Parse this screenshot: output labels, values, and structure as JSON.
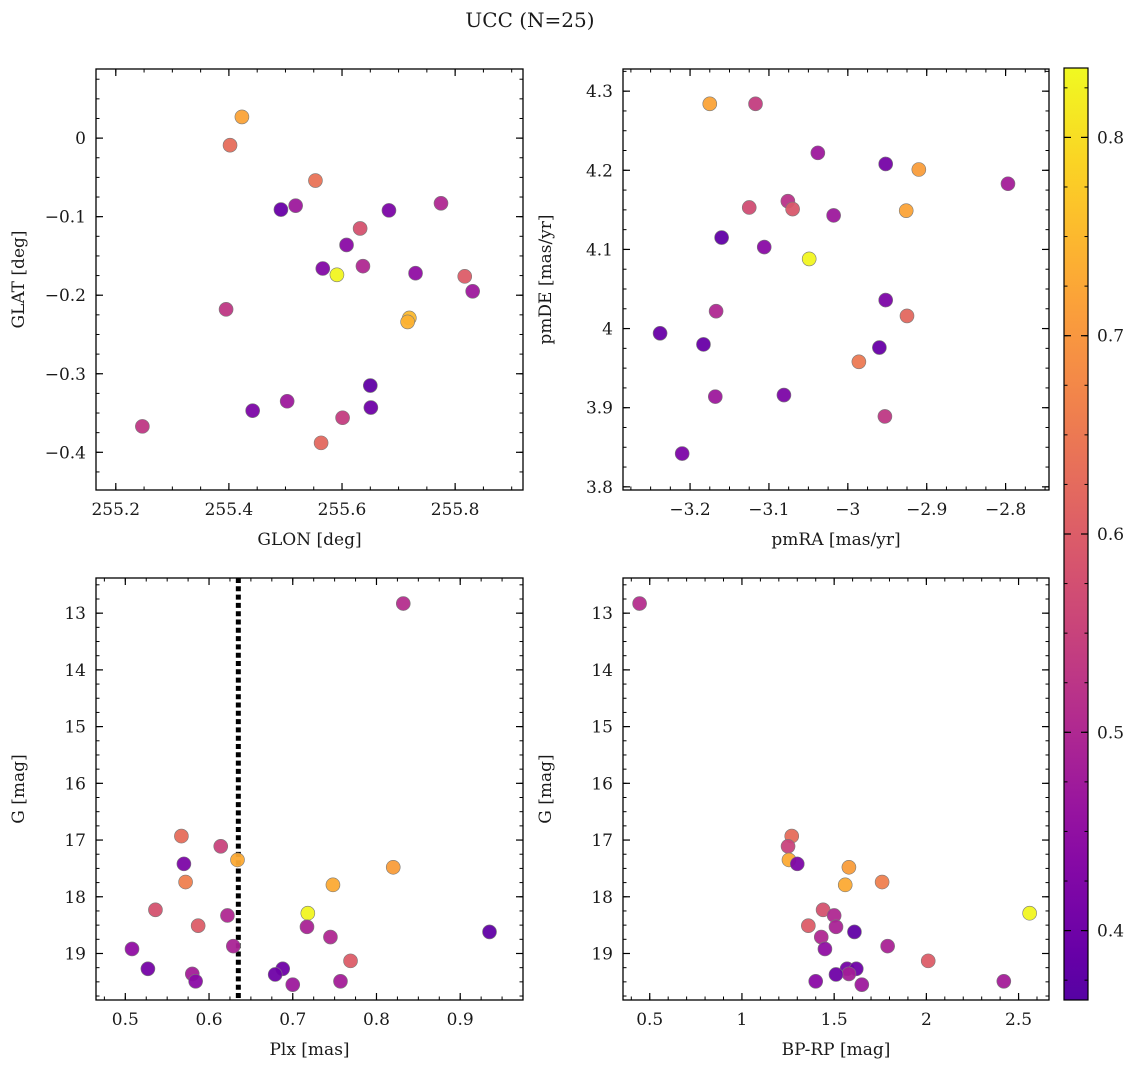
{
  "chart_data": {
    "title": "UCC (N=25)",
    "type": "scatter",
    "colorbar": {
      "colormap": "plasma",
      "range": [
        0.365,
        0.835
      ],
      "ticks": [
        0.4,
        0.5,
        0.6,
        0.7,
        0.8
      ]
    },
    "panels": [
      {
        "id": "glon-glat",
        "xlabel": "GLON [deg]",
        "ylabel": "GLAT [deg]",
        "xlim": [
          255.165,
          255.92
        ],
        "ylim": [
          -0.448,
          0.088
        ],
        "yinvert": false,
        "xticks": [
          255.2,
          255.4,
          255.6,
          255.8
        ],
        "yticks": [
          0.0,
          -0.1,
          -0.2,
          -0.3,
          -0.4
        ],
        "xminor": 0.05,
        "yminor": 0.025,
        "points": [
          {
            "x": 255.423,
            "y": 0.027,
            "c": 0.72
          },
          {
            "x": 255.402,
            "y": -0.009,
            "c": 0.63
          },
          {
            "x": 255.553,
            "y": -0.054,
            "c": 0.64
          },
          {
            "x": 255.518,
            "y": -0.086,
            "c": 0.47
          },
          {
            "x": 255.492,
            "y": -0.091,
            "c": 0.39
          },
          {
            "x": 255.683,
            "y": -0.092,
            "c": 0.42
          },
          {
            "x": 255.775,
            "y": -0.083,
            "c": 0.5
          },
          {
            "x": 255.632,
            "y": -0.115,
            "c": 0.58
          },
          {
            "x": 255.608,
            "y": -0.136,
            "c": 0.44
          },
          {
            "x": 255.566,
            "y": -0.166,
            "c": 0.43
          },
          {
            "x": 255.637,
            "y": -0.163,
            "c": 0.5
          },
          {
            "x": 255.591,
            "y": -0.174,
            "c": 0.83
          },
          {
            "x": 255.73,
            "y": -0.172,
            "c": 0.45
          },
          {
            "x": 255.817,
            "y": -0.176,
            "c": 0.6
          },
          {
            "x": 255.831,
            "y": -0.195,
            "c": 0.47
          },
          {
            "x": 255.395,
            "y": -0.218,
            "c": 0.53
          },
          {
            "x": 255.719,
            "y": -0.229,
            "c": 0.75
          },
          {
            "x": 255.716,
            "y": -0.234,
            "c": 0.74
          },
          {
            "x": 255.65,
            "y": -0.315,
            "c": 0.38
          },
          {
            "x": 255.651,
            "y": -0.343,
            "c": 0.4
          },
          {
            "x": 255.503,
            "y": -0.335,
            "c": 0.47
          },
          {
            "x": 255.442,
            "y": -0.347,
            "c": 0.42
          },
          {
            "x": 255.601,
            "y": -0.356,
            "c": 0.54
          },
          {
            "x": 255.563,
            "y": -0.388,
            "c": 0.62
          },
          {
            "x": 255.247,
            "y": -0.367,
            "c": 0.53
          }
        ]
      },
      {
        "id": "pmra-pmde",
        "xlabel": "pmRA [mas/yr]",
        "ylabel": "pmDE [mas/yr]",
        "xlim": [
          -3.285,
          -2.745
        ],
        "ylim": [
          3.796,
          4.328
        ],
        "yinvert": false,
        "xticks": [
          -3.2,
          -3.1,
          -3.0,
          -2.9,
          -2.8
        ],
        "yticks": [
          3.8,
          3.9,
          4.0,
          4.1,
          4.2,
          4.3
        ],
        "xminor": 0.025,
        "yminor": 0.025,
        "points": [
          {
            "x": -3.175,
            "y": 4.284,
            "c": 0.72
          },
          {
            "x": -3.117,
            "y": 4.284,
            "c": 0.54
          },
          {
            "x": -3.038,
            "y": 4.222,
            "c": 0.47
          },
          {
            "x": -2.952,
            "y": 4.208,
            "c": 0.41
          },
          {
            "x": -2.91,
            "y": 4.201,
            "c": 0.71
          },
          {
            "x": -2.797,
            "y": 4.183,
            "c": 0.48
          },
          {
            "x": -3.076,
            "y": 4.161,
            "c": 0.52
          },
          {
            "x": -3.125,
            "y": 4.153,
            "c": 0.57
          },
          {
            "x": -3.07,
            "y": 4.151,
            "c": 0.59
          },
          {
            "x": -3.018,
            "y": 4.143,
            "c": 0.47
          },
          {
            "x": -2.926,
            "y": 4.149,
            "c": 0.72
          },
          {
            "x": -3.16,
            "y": 4.115,
            "c": 0.38
          },
          {
            "x": -3.106,
            "y": 4.103,
            "c": 0.44
          },
          {
            "x": -3.049,
            "y": 4.088,
            "c": 0.83
          },
          {
            "x": -2.952,
            "y": 4.036,
            "c": 0.42
          },
          {
            "x": -3.167,
            "y": 4.022,
            "c": 0.5
          },
          {
            "x": -2.925,
            "y": 4.016,
            "c": 0.62
          },
          {
            "x": -3.238,
            "y": 3.994,
            "c": 0.39
          },
          {
            "x": -3.183,
            "y": 3.98,
            "c": 0.39
          },
          {
            "x": -2.96,
            "y": 3.976,
            "c": 0.39
          },
          {
            "x": -2.986,
            "y": 3.958,
            "c": 0.65
          },
          {
            "x": -3.168,
            "y": 3.914,
            "c": 0.47
          },
          {
            "x": -3.081,
            "y": 3.916,
            "c": 0.42
          },
          {
            "x": -2.953,
            "y": 3.889,
            "c": 0.53
          },
          {
            "x": -3.21,
            "y": 3.842,
            "c": 0.42
          }
        ]
      },
      {
        "id": "plx-g",
        "xlabel": "Plx [mas]",
        "ylabel": "G [mag]",
        "xlim": [
          0.465,
          0.975
        ],
        "ylim": [
          12.38,
          19.82
        ],
        "yinvert": true,
        "xticks": [
          0.5,
          0.6,
          0.7,
          0.8,
          0.9
        ],
        "yticks": [
          13,
          14,
          15,
          16,
          17,
          18,
          19
        ],
        "xminor": 0.025,
        "yminor": 0.25,
        "vline": {
          "x": 0.635,
          "style": "dotted"
        },
        "points": [
          {
            "x": 0.832,
            "y": 12.83,
            "c": 0.51
          },
          {
            "x": 0.567,
            "y": 16.93,
            "c": 0.63
          },
          {
            "x": 0.614,
            "y": 17.11,
            "c": 0.55
          },
          {
            "x": 0.634,
            "y": 17.35,
            "c": 0.73
          },
          {
            "x": 0.57,
            "y": 17.42,
            "c": 0.42
          },
          {
            "x": 0.82,
            "y": 17.48,
            "c": 0.71
          },
          {
            "x": 0.572,
            "y": 17.74,
            "c": 0.66
          },
          {
            "x": 0.748,
            "y": 17.79,
            "c": 0.73
          },
          {
            "x": 0.536,
            "y": 18.23,
            "c": 0.58
          },
          {
            "x": 0.718,
            "y": 18.29,
            "c": 0.83
          },
          {
            "x": 0.622,
            "y": 18.33,
            "c": 0.5
          },
          {
            "x": 0.587,
            "y": 18.51,
            "c": 0.6
          },
          {
            "x": 0.717,
            "y": 18.53,
            "c": 0.49
          },
          {
            "x": 0.935,
            "y": 18.62,
            "c": 0.38
          },
          {
            "x": 0.745,
            "y": 18.71,
            "c": 0.5
          },
          {
            "x": 0.629,
            "y": 18.87,
            "c": 0.49
          },
          {
            "x": 0.508,
            "y": 18.92,
            "c": 0.45
          },
          {
            "x": 0.769,
            "y": 19.13,
            "c": 0.6
          },
          {
            "x": 0.527,
            "y": 19.27,
            "c": 0.41
          },
          {
            "x": 0.688,
            "y": 19.27,
            "c": 0.4
          },
          {
            "x": 0.58,
            "y": 19.36,
            "c": 0.48
          },
          {
            "x": 0.679,
            "y": 19.37,
            "c": 0.4
          },
          {
            "x": 0.584,
            "y": 19.49,
            "c": 0.44
          },
          {
            "x": 0.757,
            "y": 19.49,
            "c": 0.48
          },
          {
            "x": 0.7,
            "y": 19.55,
            "c": 0.47
          }
        ]
      },
      {
        "id": "bprp-g",
        "xlabel": "BP-RP [mag]",
        "ylabel": "G [mag]",
        "xlim": [
          0.355,
          2.665
        ],
        "ylim": [
          12.38,
          19.82
        ],
        "yinvert": true,
        "xticks": [
          0.5,
          1.0,
          1.5,
          2.0,
          2.5
        ],
        "yticks": [
          13,
          14,
          15,
          16,
          17,
          18,
          19
        ],
        "xminor": 0.1,
        "yminor": 0.25,
        "points": [
          {
            "x": 0.445,
            "y": 12.83,
            "c": 0.51
          },
          {
            "x": 1.27,
            "y": 16.93,
            "c": 0.63
          },
          {
            "x": 1.25,
            "y": 17.11,
            "c": 0.55
          },
          {
            "x": 1.255,
            "y": 17.35,
            "c": 0.73
          },
          {
            "x": 1.3,
            "y": 17.42,
            "c": 0.42
          },
          {
            "x": 1.58,
            "y": 17.48,
            "c": 0.71
          },
          {
            "x": 1.76,
            "y": 17.74,
            "c": 0.66
          },
          {
            "x": 1.56,
            "y": 17.79,
            "c": 0.73
          },
          {
            "x": 1.44,
            "y": 18.23,
            "c": 0.58
          },
          {
            "x": 2.56,
            "y": 18.29,
            "c": 0.83
          },
          {
            "x": 1.5,
            "y": 18.33,
            "c": 0.5
          },
          {
            "x": 1.36,
            "y": 18.51,
            "c": 0.6
          },
          {
            "x": 1.51,
            "y": 18.53,
            "c": 0.49
          },
          {
            "x": 1.61,
            "y": 18.62,
            "c": 0.38
          },
          {
            "x": 1.43,
            "y": 18.71,
            "c": 0.5
          },
          {
            "x": 1.79,
            "y": 18.87,
            "c": 0.49
          },
          {
            "x": 1.45,
            "y": 18.92,
            "c": 0.45
          },
          {
            "x": 2.01,
            "y": 19.13,
            "c": 0.6
          },
          {
            "x": 1.57,
            "y": 19.27,
            "c": 0.41
          },
          {
            "x": 1.62,
            "y": 19.27,
            "c": 0.4
          },
          {
            "x": 1.58,
            "y": 19.36,
            "c": 0.48
          },
          {
            "x": 1.51,
            "y": 19.37,
            "c": 0.4
          },
          {
            "x": 1.4,
            "y": 19.49,
            "c": 0.44
          },
          {
            "x": 2.42,
            "y": 19.49,
            "c": 0.48
          },
          {
            "x": 1.65,
            "y": 19.55,
            "c": 0.47
          }
        ]
      }
    ]
  }
}
